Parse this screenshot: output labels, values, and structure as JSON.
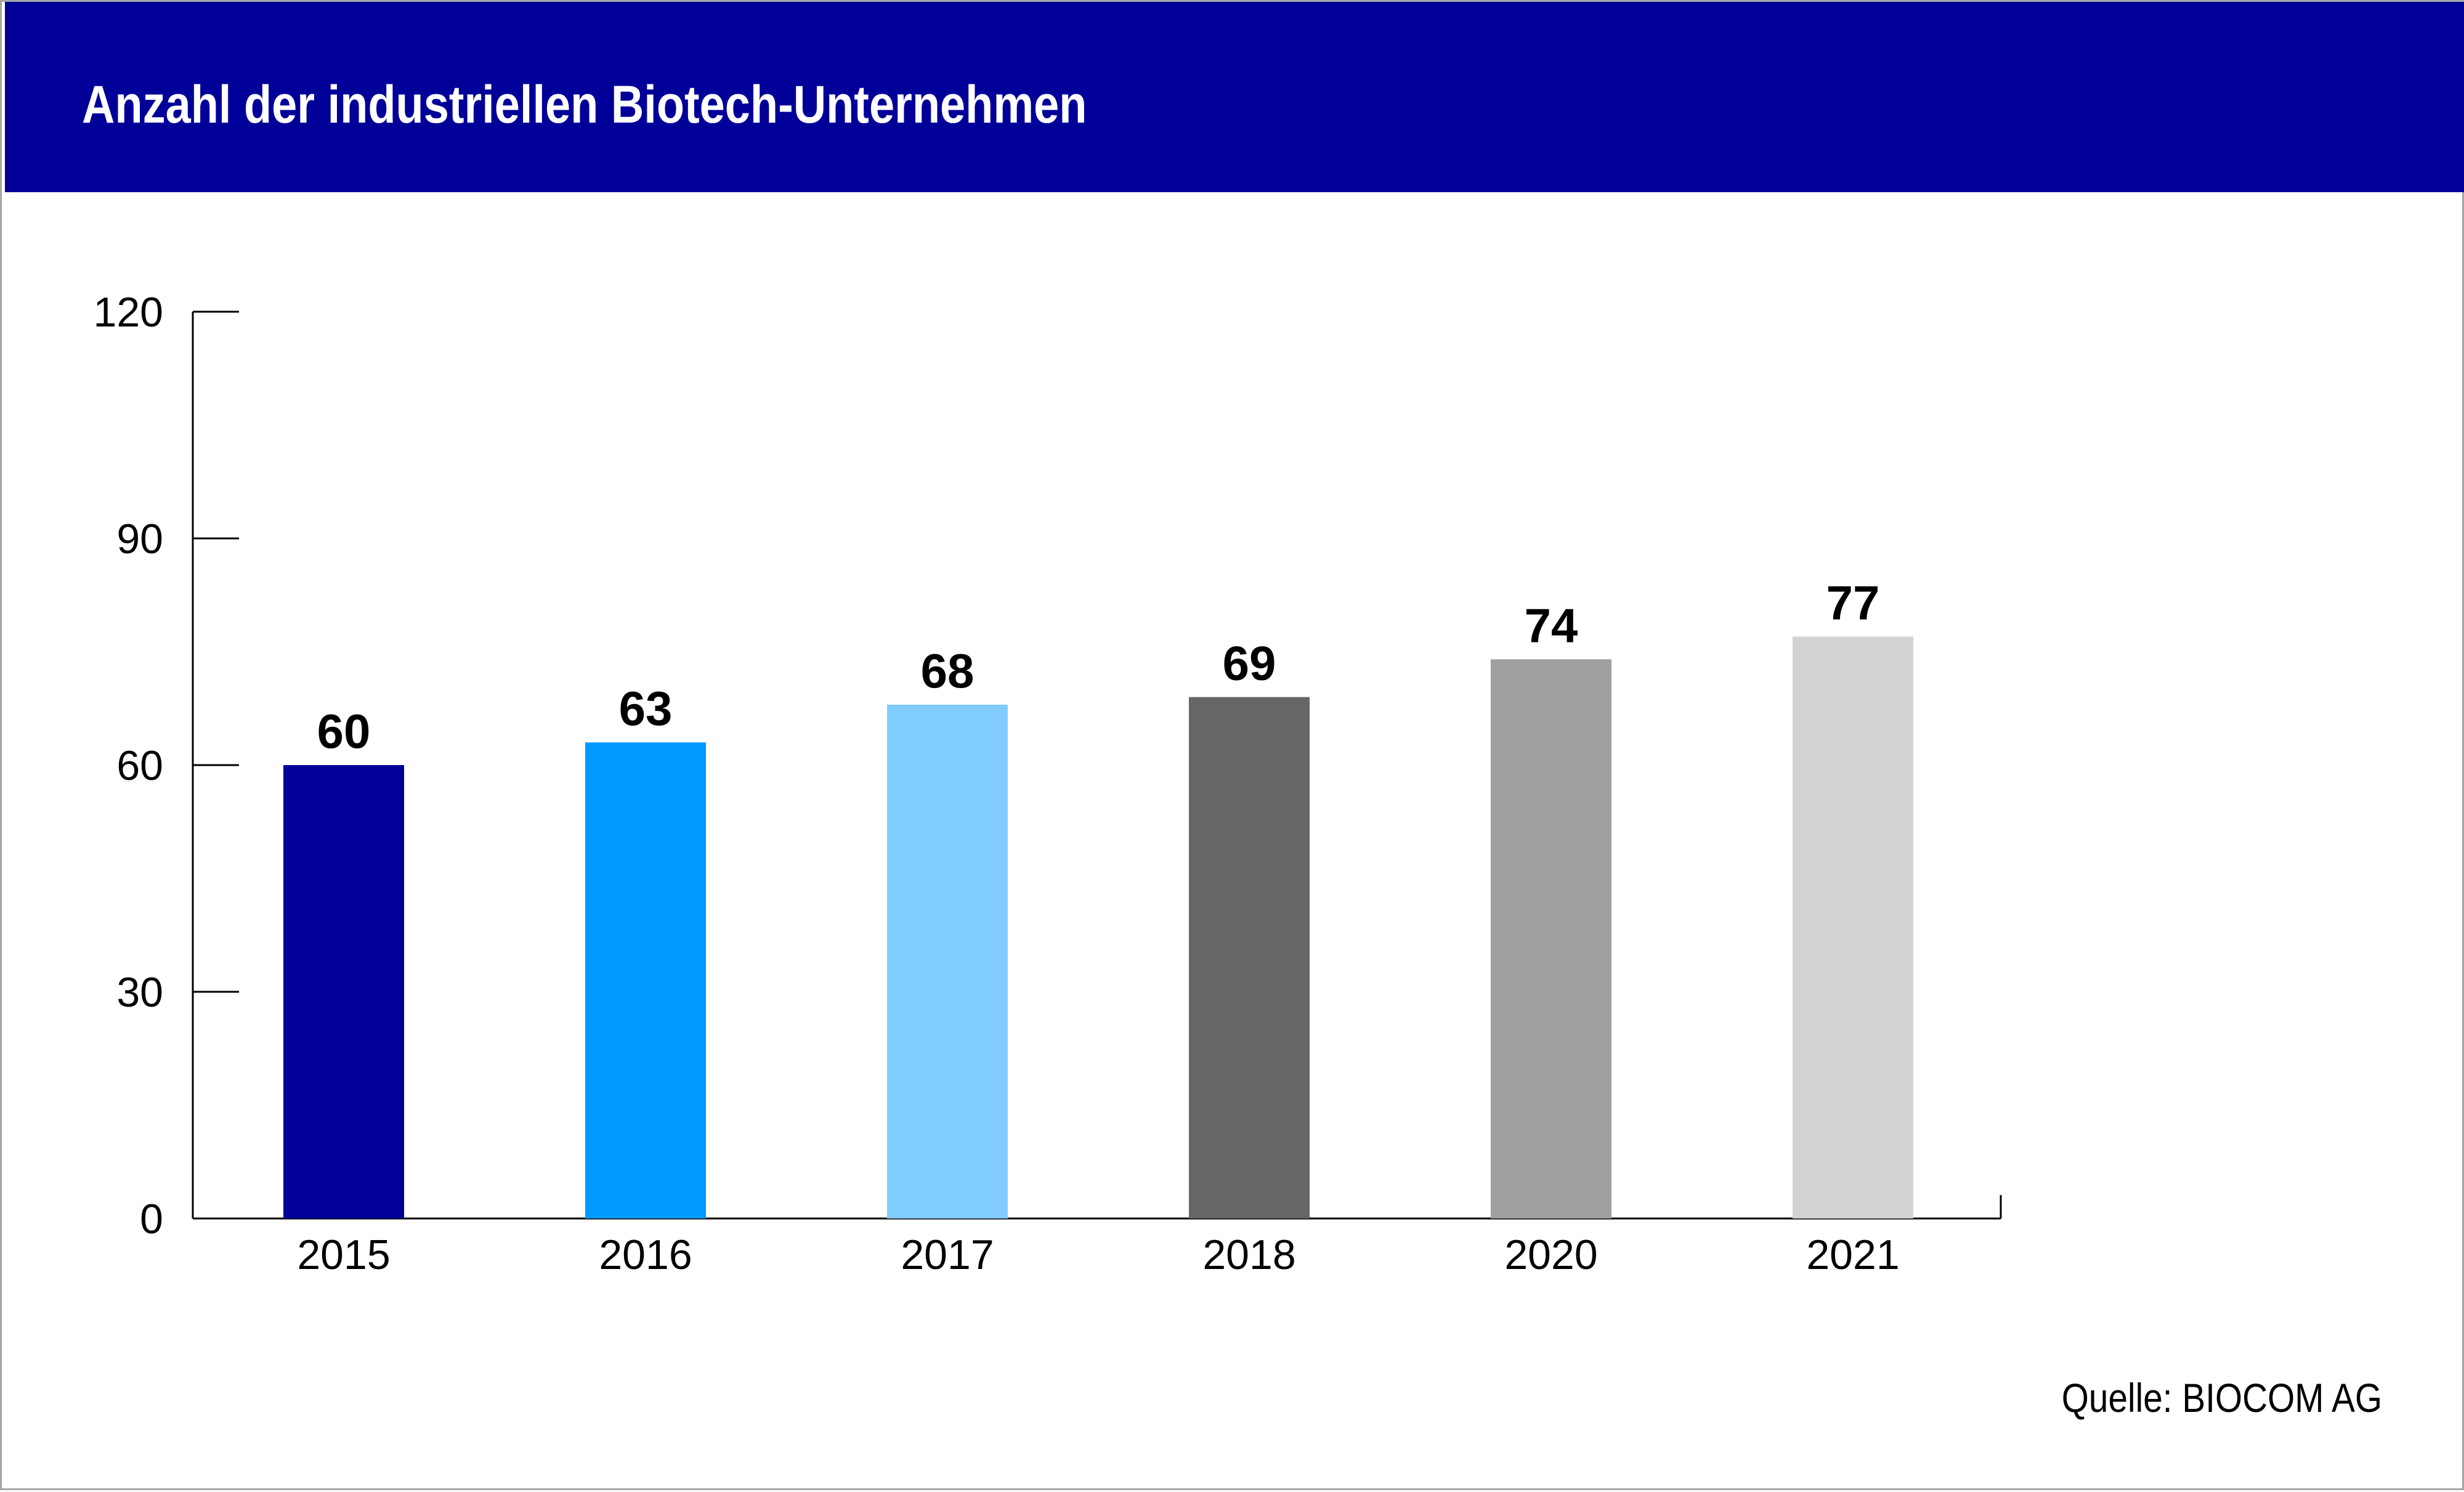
{
  "header": {
    "title": "Anzahl der industriellen Biotech-Unternehmen"
  },
  "footer": {
    "source": "Quelle: BIOCOM AG"
  },
  "chart_data": {
    "type": "bar",
    "title": "Anzahl der industriellen Biotech-Unternehmen",
    "xlabel": "",
    "ylabel": "",
    "categories": [
      "2015",
      "2016",
      "2017",
      "2018",
      "2020",
      "2021"
    ],
    "values": [
      60,
      63,
      68,
      69,
      74,
      77
    ],
    "value_labels": [
      "60",
      "63",
      "68",
      "69",
      "74",
      "77"
    ],
    "bar_colors": [
      "#000099",
      "#0099ff",
      "#80ccff",
      "#666666",
      "#a0a0a0",
      "#d3d3d3"
    ],
    "ylim": [
      0,
      120
    ],
    "yticks": [
      0,
      30,
      60,
      90,
      120
    ],
    "ytick_labels": [
      "0",
      "30",
      "60",
      "90",
      "120"
    ],
    "grid": false,
    "legend": "none"
  }
}
